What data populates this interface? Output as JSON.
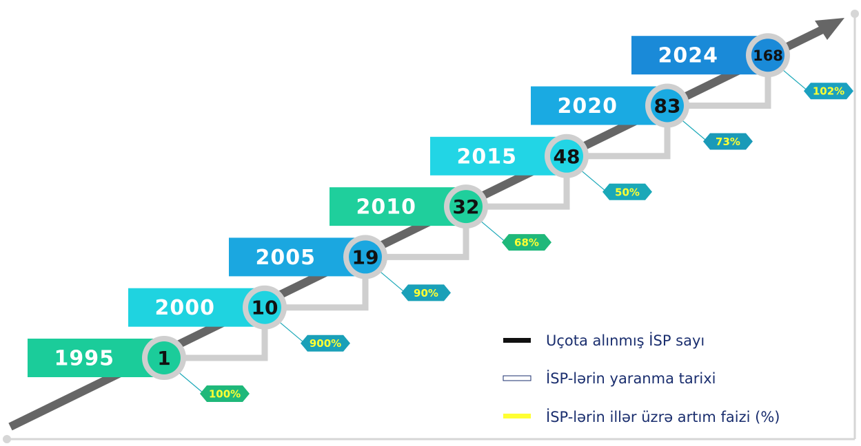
{
  "steps": [
    {
      "year": "1995",
      "count": "1",
      "growth": "100%"
    },
    {
      "year": "2000",
      "count": "10",
      "growth": "900%"
    },
    {
      "year": "2005",
      "count": "19",
      "growth": "90%"
    },
    {
      "year": "2010",
      "count": "32",
      "growth": "68%"
    },
    {
      "year": "2015",
      "count": "48",
      "growth": "50%"
    },
    {
      "year": "2020",
      "count": "83",
      "growth": "73%"
    },
    {
      "year": "2024",
      "count": "168",
      "growth": "102%"
    }
  ],
  "legend": [
    "Uçota alınmış İSP sayı",
    "İSP-lərin yaranma tarixi",
    "İSP-lərin illər üzrə artım faizi (%)"
  ]
}
